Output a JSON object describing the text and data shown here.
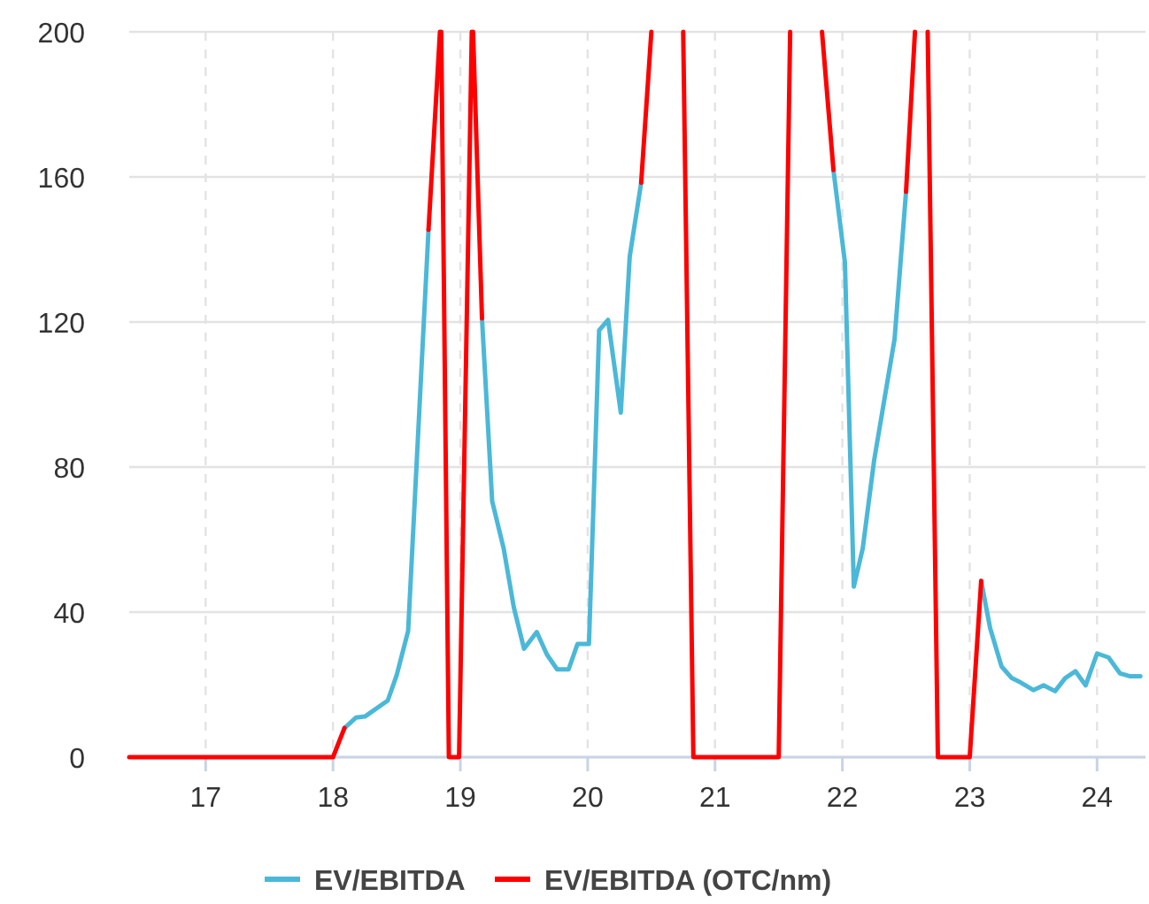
{
  "chart_data": {
    "type": "line",
    "xlim": [
      16.4,
      24.38
    ],
    "xticks": [
      17,
      18,
      19,
      20,
      21,
      22,
      23,
      24
    ],
    "ylim": [
      0,
      200
    ],
    "yticks": [
      0,
      40,
      80,
      120,
      160,
      200
    ],
    "grid": true,
    "legend": "bottom",
    "marker": "none",
    "line_style": "solid",
    "series": [
      {
        "name": "EV/EBITDA",
        "color": "#4bb8d8",
        "x": [
          18.09,
          18.18,
          18.25,
          18.43,
          18.5,
          18.59,
          18.75,
          18.8,
          19.17,
          19.25,
          19.34,
          19.42,
          19.5,
          19.6,
          19.68,
          19.76,
          19.85,
          19.92,
          20.01,
          20.09,
          20.16,
          20.26,
          20.33,
          20.42,
          20.6,
          21.93,
          22.02,
          22.09,
          22.16,
          22.25,
          22.41,
          22.5,
          22.8,
          23.09,
          23.16,
          23.25,
          23.33,
          23.4,
          23.5,
          23.58,
          23.67,
          23.75,
          23.83,
          23.91,
          24.0,
          24.09,
          24.18,
          24.26,
          24.34
        ],
        "values": [
          8,
          10.9,
          11.2,
          15.6,
          22.6,
          34.8,
          145.4,
          null,
          121,
          70.6,
          57.6,
          41.3,
          29.9,
          34.5,
          28.3,
          24.2,
          24.2,
          31.2,
          31.2,
          117.7,
          120.6,
          95,
          138,
          158.4,
          null,
          161.9,
          136.4,
          47,
          57.6,
          82,
          115.3,
          155.9,
          null,
          48.6,
          35.6,
          25,
          21.8,
          20.6,
          18.5,
          19.8,
          18.2,
          21.8,
          23.7,
          19.8,
          28.6,
          27.5,
          23.1,
          22.3,
          22.3
        ]
      },
      {
        "name": "EV/EBITDA (OTC/nm)",
        "color": "#ff0000",
        "x": [
          16.4,
          18.0,
          18.09,
          18.4,
          18.75,
          18.84,
          18.845,
          18.85,
          18.91,
          18.99,
          19.09,
          19.095,
          19.1,
          19.17,
          19.8,
          20.42,
          20.5,
          20.6,
          20.75,
          20.83,
          21.5,
          21.59,
          21.7,
          21.84,
          21.93,
          22.2,
          22.5,
          22.57,
          22.6,
          22.67,
          22.75,
          23.0,
          23.09
        ],
        "values": [
          0,
          0,
          8,
          null,
          145.4,
          200,
          null,
          200,
          0,
          0,
          200,
          null,
          200,
          121,
          null,
          158.4,
          200,
          null,
          200,
          0,
          0,
          200,
          null,
          200,
          161.9,
          null,
          155.9,
          200,
          null,
          200,
          0,
          0,
          48.6
        ]
      }
    ]
  }
}
